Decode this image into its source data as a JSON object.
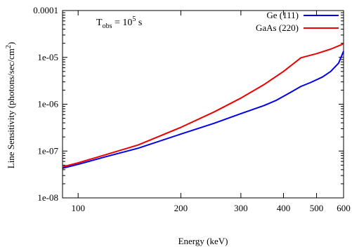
{
  "chart_data": {
    "type": "line",
    "x_scale": "log",
    "y_scale": "log",
    "xlabel": "Energy (keV)",
    "ylabel": "Line Sensitivity (photons/sec/cm",
    "ylabel_sup": "2",
    "ylabel_close": ")",
    "xlim": [
      90,
      600
    ],
    "ylim": [
      1e-08,
      0.0001
    ],
    "x_ticks": [
      {
        "value": 100,
        "label": "100"
      },
      {
        "value": 200,
        "label": "200"
      },
      {
        "value": 300,
        "label": "300"
      },
      {
        "value": 400,
        "label": "400"
      },
      {
        "value": 500,
        "label": "500"
      },
      {
        "value": 600,
        "label": "600"
      }
    ],
    "y_ticks": [
      {
        "value": 0.0001,
        "label": "0.0001"
      },
      {
        "value": 1e-05,
        "label": "1e-05"
      },
      {
        "value": 1e-06,
        "label": "1e-06"
      },
      {
        "value": 1e-07,
        "label": "1e-07"
      },
      {
        "value": 1e-08,
        "label": "1e-08"
      }
    ],
    "annotation": {
      "base": "T",
      "sub": "obs",
      "eq": " = 10",
      "sup": "5",
      "unit": " s"
    },
    "legend_position": "top-right",
    "grid": false,
    "series": [
      {
        "name": "Ge (111)",
        "color": "#0000ee",
        "points": [
          [
            90,
            4.3e-08
          ],
          [
            100,
            5.2e-08
          ],
          [
            120,
            7.5e-08
          ],
          [
            150,
            1.15e-07
          ],
          [
            200,
            2.3e-07
          ],
          [
            250,
            3.9e-07
          ],
          [
            300,
            6.3e-07
          ],
          [
            350,
            9.3e-07
          ],
          [
            380,
            1.2e-06
          ],
          [
            420,
            1.8e-06
          ],
          [
            450,
            2.4e-06
          ],
          [
            480,
            2.9e-06
          ],
          [
            520,
            3.8e-06
          ],
          [
            550,
            5e-06
          ],
          [
            580,
            7.5e-06
          ],
          [
            600,
            1.35e-05
          ]
        ]
      },
      {
        "name": "GaAs (220)",
        "color": "#ee0000",
        "points": [
          [
            90,
            4.6e-08
          ],
          [
            100,
            5.6e-08
          ],
          [
            120,
            8.3e-08
          ],
          [
            150,
            1.35e-07
          ],
          [
            200,
            3.2e-07
          ],
          [
            250,
            6.8e-07
          ],
          [
            300,
            1.35e-06
          ],
          [
            350,
            2.6e-06
          ],
          [
            400,
            5e-06
          ],
          [
            450,
            9.8e-06
          ],
          [
            500,
            1.2e-05
          ],
          [
            550,
            1.5e-05
          ],
          [
            600,
            1.95e-05
          ]
        ]
      }
    ]
  }
}
